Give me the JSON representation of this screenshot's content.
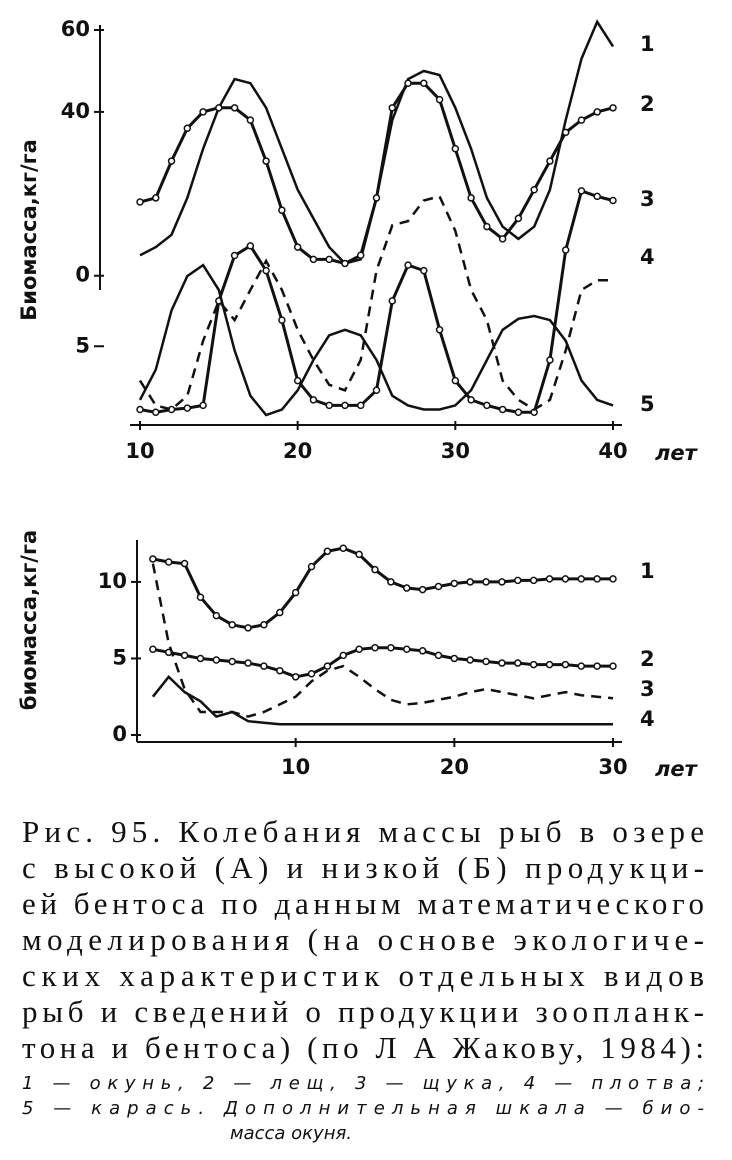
{
  "chart_data": [
    {
      "type": "line",
      "y_label": "Биомасса,кг/га",
      "x_label": "лет",
      "x": [
        10,
        11,
        12,
        13,
        14,
        15,
        16,
        17,
        18,
        19,
        20,
        21,
        22,
        23,
        24,
        25,
        26,
        27,
        28,
        29,
        30,
        31,
        32,
        33,
        34,
        35,
        36,
        37,
        38,
        39,
        40
      ],
      "xlim": [
        10,
        40
      ],
      "xticks": [
        10,
        20,
        30,
        40
      ],
      "ylim": [
        -34,
        60
      ],
      "yticks": [
        0,
        40,
        60
      ],
      "y2lim": [
        0,
        28
      ],
      "y2ticks": [
        5
      ],
      "series": [
        {
          "name": "1",
          "color": "#111",
          "markers": false,
          "dashed": false,
          "values": [
            5,
            7,
            10,
            19,
            31,
            41,
            48,
            47,
            41,
            31,
            21,
            14,
            7,
            3,
            4,
            19,
            38,
            48,
            50,
            49,
            41,
            31,
            19,
            12,
            9,
            12,
            21,
            38,
            53,
            62,
            56
          ]
        },
        {
          "name": "2",
          "color": "#111",
          "markers": true,
          "dashed": false,
          "values": [
            18,
            19,
            28,
            36,
            40,
            41,
            41,
            38,
            28,
            16,
            7,
            4,
            4,
            3,
            5,
            19,
            41,
            47,
            47,
            43,
            31,
            19,
            12,
            9,
            14,
            21,
            28,
            35,
            38,
            40,
            41
          ]
        },
        {
          "name": "3",
          "color": "#111",
          "markers": true,
          "dashed": false,
          "axis": "y2",
          "values": [
            0.4,
            0.2,
            0.4,
            0.5,
            0.7,
            8.3,
            11.6,
            12.3,
            10.5,
            6.9,
            2.5,
            1.1,
            0.7,
            0.7,
            0.7,
            1.8,
            8.3,
            10.9,
            10.5,
            6.2,
            2.5,
            1.1,
            0.7,
            0.4,
            0.2,
            0.2,
            4,
            12,
            16.3,
            15.9,
            15.6
          ]
        },
        {
          "name": "4",
          "color": "#111",
          "markers": false,
          "dashed": false,
          "axis": "y2",
          "values": [
            1.1,
            3.3,
            7.6,
            10.1,
            10.9,
            9.1,
            4.7,
            1.4,
            0,
            0.4,
            1.8,
            4,
            5.8,
            6.2,
            5.8,
            4,
            1.4,
            0.7,
            0.4,
            0.4,
            0.7,
            1.8,
            4,
            6.2,
            7,
            7.2,
            6.9,
            5.4,
            2.5,
            1.1,
            0.7
          ]
        },
        {
          "name": "5",
          "color": "#111",
          "markers": false,
          "dashed": true,
          "axis": "y2",
          "values": [
            2.5,
            0.7,
            0.4,
            1.4,
            5.4,
            8.3,
            6.9,
            9.1,
            11.2,
            9.1,
            6.2,
            4,
            2.2,
            1.8,
            4,
            10.5,
            13.8,
            14.1,
            15.6,
            15.9,
            13.4,
            9.1,
            6.9,
            2.5,
            1.1,
            0.4,
            1.1,
            4.7,
            9.1,
            9.8,
            9.8
          ]
        }
      ]
    },
    {
      "type": "line",
      "y_label": "биомасса,кг/га",
      "x_label": "лет",
      "x": [
        1,
        2,
        3,
        4,
        5,
        6,
        7,
        8,
        9,
        10,
        11,
        12,
        13,
        14,
        15,
        16,
        17,
        18,
        19,
        20,
        21,
        22,
        23,
        24,
        25,
        26,
        27,
        28,
        29,
        30
      ],
      "xlim": [
        0,
        30
      ],
      "xticks": [
        10,
        20,
        30
      ],
      "ylim": [
        0,
        13
      ],
      "yticks": [
        0,
        5,
        10
      ],
      "series": [
        {
          "name": "1",
          "color": "#111",
          "markers": true,
          "dashed": false,
          "values": [
            11.5,
            11.3,
            11.2,
            9,
            7.8,
            7.2,
            7,
            7.2,
            8,
            9.3,
            11,
            12,
            12.2,
            11.8,
            10.8,
            10,
            9.6,
            9.5,
            9.7,
            9.9,
            10,
            10,
            10,
            10.1,
            10.1,
            10.2,
            10.2,
            10.2,
            10.2,
            10.2
          ]
        },
        {
          "name": "2",
          "color": "#111",
          "markers": true,
          "dashed": false,
          "values": [
            5.6,
            5.4,
            5.2,
            5,
            4.9,
            4.8,
            4.7,
            4.5,
            4.2,
            3.8,
            4,
            4.5,
            5.2,
            5.6,
            5.7,
            5.7,
            5.6,
            5.5,
            5.2,
            5,
            4.9,
            4.8,
            4.7,
            4.7,
            4.6,
            4.6,
            4.6,
            4.5,
            4.5,
            4.5
          ]
        },
        {
          "name": "3",
          "color": "#111",
          "markers": false,
          "dashed": true,
          "values": [
            11.2,
            6,
            3,
            1.5,
            1.5,
            1.5,
            1.2,
            1.5,
            2,
            2.5,
            3.5,
            4.2,
            4.5,
            3.8,
            3,
            2.3,
            2,
            2.1,
            2.3,
            2.5,
            2.8,
            3,
            2.8,
            2.6,
            2.4,
            2.6,
            2.8,
            2.6,
            2.5,
            2.4
          ]
        },
        {
          "name": "4",
          "color": "#111",
          "markers": false,
          "dashed": false,
          "values": [
            2.5,
            3.8,
            2.8,
            2.2,
            1.2,
            1.5,
            0.9,
            0.8,
            0.7,
            0.7,
            0.7,
            0.7,
            0.7,
            0.7,
            0.7,
            0.7,
            0.7,
            0.7,
            0.7,
            0.7,
            0.7,
            0.7,
            0.7,
            0.7,
            0.7,
            0.7,
            0.7,
            0.7,
            0.7,
            0.7
          ]
        }
      ]
    }
  ],
  "caption": {
    "lines": [
      "Рис. 95. Колебания массы рыб в озере",
      "с высокой (А) и низкой (Б) продукци-",
      "ей бентоса по данным математического",
      "моделирования (на основе экологиче-",
      "ских характеристик отдельных видов",
      "рыб и сведений о продукции зоопланк-",
      "тона и бентоса) (по Л А Жакову, 1984):"
    ],
    "notes": [
      "1 — окунь,   2 — лещ,   3 — щука,   4 — плотва;",
      "5 — карась.  Дополнительная   шкала — био-",
      "масса окуня."
    ]
  }
}
